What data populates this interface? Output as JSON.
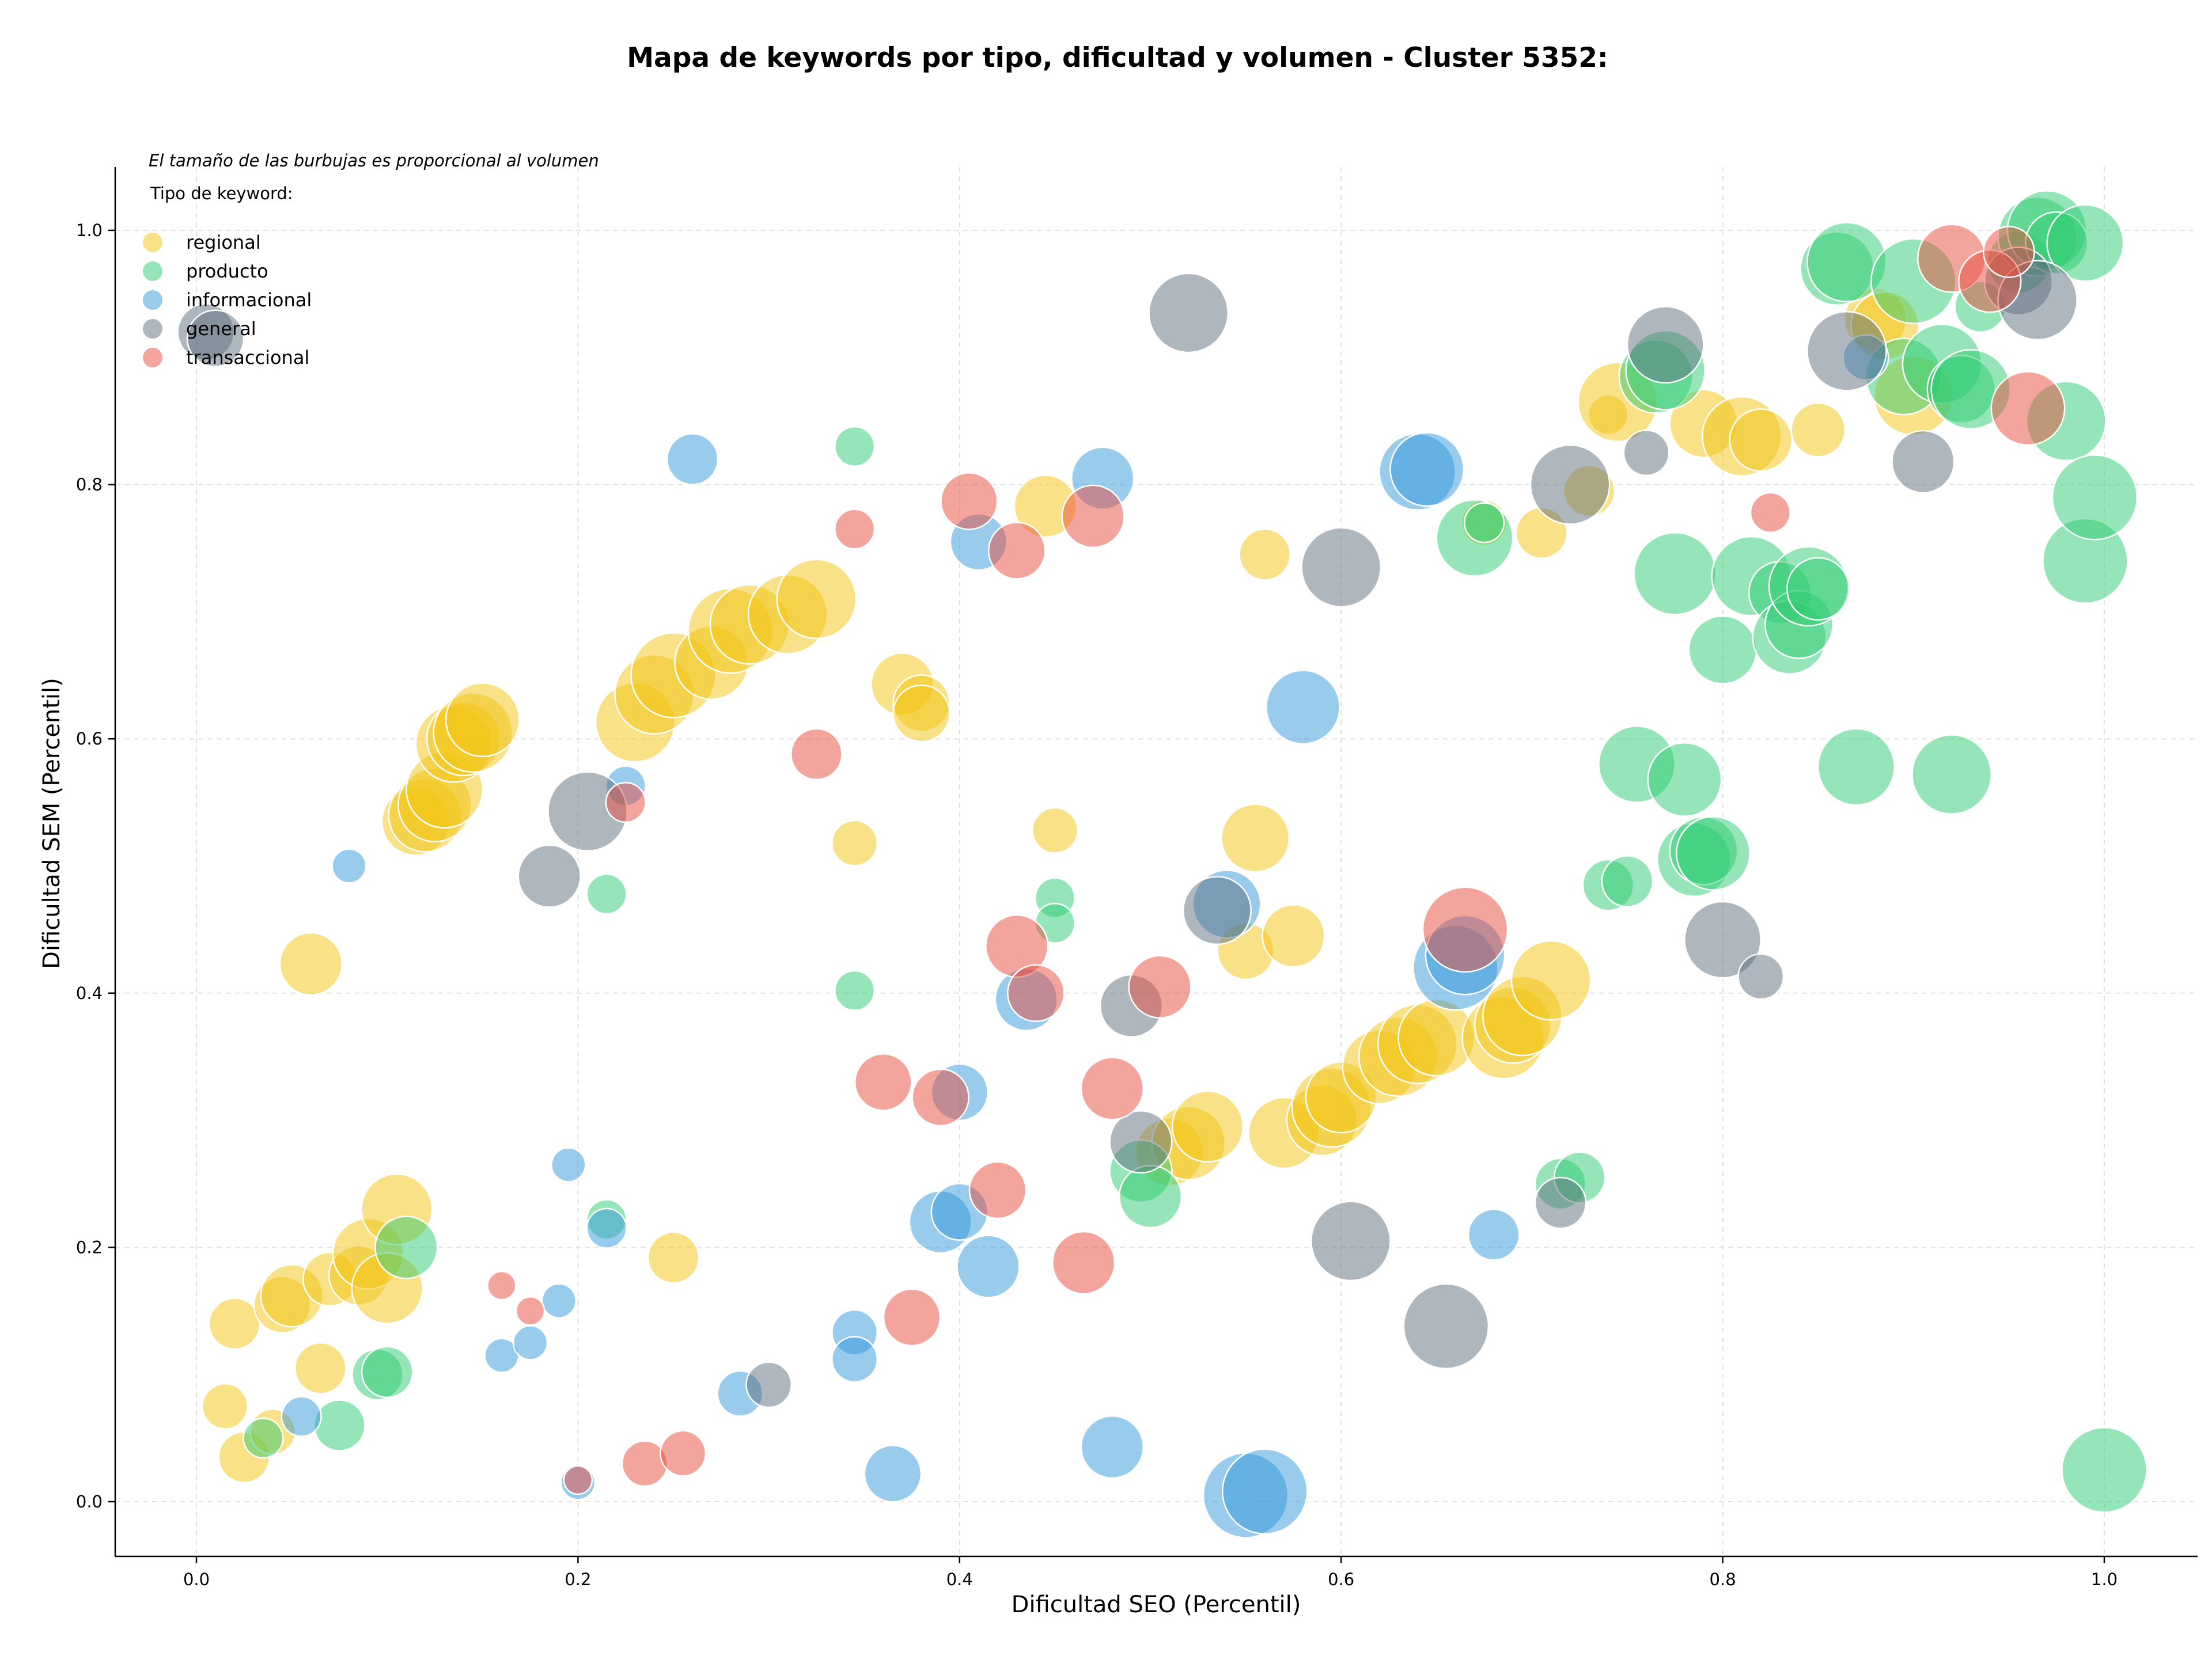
{
  "chart_data": {
    "type": "scatter",
    "title": "Mapa de keywords por tipo, dificultad y volumen - Cluster 5352:",
    "xlabel": "Dificultad SEO (Percentil)",
    "ylabel": "Dificultad SEM (Percentil)",
    "note": "El tamaño de las burbujas es proporcional al volumen",
    "legend_title": "Tipo de keyword:",
    "legend_placement": "top-left",
    "grid": true,
    "xlim": [
      -0.05,
      1.05
    ],
    "ylim": [
      -0.04,
      1.05
    ],
    "x_ticks": [
      "0.0",
      "0.2",
      "0.4",
      "0.6",
      "0.8",
      "1.0"
    ],
    "y_ticks": [
      "0.0",
      "0.2",
      "0.4",
      "0.6",
      "0.8",
      "1.0"
    ],
    "series": [
      {
        "name": "regional",
        "color": "#f1c40f",
        "points": [
          [
            0.015,
            0.075,
            16
          ],
          [
            0.02,
            0.14,
            18
          ],
          [
            0.025,
            0.035,
            18
          ],
          [
            0.04,
            0.055,
            16
          ],
          [
            0.045,
            0.155,
            20
          ],
          [
            0.05,
            0.162,
            22
          ],
          [
            0.065,
            0.105,
            18
          ],
          [
            0.07,
            0.175,
            19
          ],
          [
            0.085,
            0.178,
            21
          ],
          [
            0.09,
            0.195,
            25
          ],
          [
            0.1,
            0.168,
            25
          ],
          [
            0.105,
            0.23,
            25
          ],
          [
            0.06,
            0.423,
            22
          ],
          [
            0.115,
            0.535,
            24
          ],
          [
            0.12,
            0.54,
            26
          ],
          [
            0.125,
            0.548,
            26
          ],
          [
            0.13,
            0.56,
            27
          ],
          [
            0.135,
            0.596,
            27
          ],
          [
            0.14,
            0.6,
            26
          ],
          [
            0.145,
            0.605,
            28
          ],
          [
            0.15,
            0.615,
            26
          ],
          [
            0.23,
            0.613,
            28
          ],
          [
            0.24,
            0.635,
            28
          ],
          [
            0.25,
            0.65,
            30
          ],
          [
            0.27,
            0.66,
            26
          ],
          [
            0.28,
            0.685,
            30
          ],
          [
            0.29,
            0.69,
            28
          ],
          [
            0.31,
            0.698,
            28
          ],
          [
            0.325,
            0.71,
            28
          ],
          [
            0.37,
            0.643,
            22
          ],
          [
            0.38,
            0.628,
            20
          ],
          [
            0.38,
            0.62,
            20
          ],
          [
            0.445,
            0.783,
            22
          ],
          [
            0.45,
            0.528,
            16
          ],
          [
            0.345,
            0.518,
            16
          ],
          [
            0.25,
            0.192,
            18
          ],
          [
            0.51,
            0.275,
            24
          ],
          [
            0.52,
            0.282,
            26
          ],
          [
            0.53,
            0.295,
            25
          ],
          [
            0.55,
            0.433,
            20
          ],
          [
            0.555,
            0.522,
            24
          ],
          [
            0.56,
            0.745,
            18
          ],
          [
            0.575,
            0.445,
            22
          ],
          [
            0.57,
            0.29,
            25
          ],
          [
            0.59,
            0.3,
            25
          ],
          [
            0.595,
            0.31,
            28
          ],
          [
            0.6,
            0.318,
            25
          ],
          [
            0.62,
            0.342,
            26
          ],
          [
            0.63,
            0.35,
            28
          ],
          [
            0.64,
            0.36,
            28
          ],
          [
            0.65,
            0.365,
            27
          ],
          [
            0.685,
            0.365,
            29
          ],
          [
            0.69,
            0.375,
            27
          ],
          [
            0.695,
            0.382,
            28
          ],
          [
            0.71,
            0.41,
            28
          ],
          [
            0.705,
            0.762,
            18
          ],
          [
            0.73,
            0.795,
            18
          ],
          [
            0.74,
            0.855,
            14
          ],
          [
            0.745,
            0.865,
            28
          ],
          [
            0.79,
            0.848,
            24
          ],
          [
            0.81,
            0.838,
            28
          ],
          [
            0.82,
            0.835,
            22
          ],
          [
            0.85,
            0.843,
            19
          ],
          [
            0.88,
            0.93,
            22
          ],
          [
            0.885,
            0.925,
            24
          ],
          [
            0.9,
            0.87,
            28
          ],
          [
            0.675,
            0.77,
            16
          ]
        ]
      },
      {
        "name": "producto",
        "color": "#2ecc71",
        "points": [
          [
            0.035,
            0.05,
            14
          ],
          [
            0.075,
            0.06,
            18
          ],
          [
            0.095,
            0.1,
            18
          ],
          [
            0.1,
            0.102,
            18
          ],
          [
            0.11,
            0.2,
            22
          ],
          [
            0.215,
            0.222,
            14
          ],
          [
            0.215,
            0.478,
            14
          ],
          [
            0.345,
            0.83,
            14
          ],
          [
            0.345,
            0.402,
            14
          ],
          [
            0.45,
            0.475,
            14
          ],
          [
            0.45,
            0.455,
            14
          ],
          [
            0.495,
            0.26,
            22
          ],
          [
            0.5,
            0.24,
            22
          ],
          [
            0.67,
            0.758,
            27
          ],
          [
            0.675,
            0.77,
            14
          ],
          [
            0.715,
            0.25,
            18
          ],
          [
            0.725,
            0.255,
            18
          ],
          [
            0.74,
            0.485,
            18
          ],
          [
            0.75,
            0.488,
            18
          ],
          [
            0.755,
            0.58,
            27
          ],
          [
            0.765,
            0.885,
            26
          ],
          [
            0.77,
            0.89,
            28
          ],
          [
            0.775,
            0.73,
            29
          ],
          [
            0.78,
            0.568,
            26
          ],
          [
            0.785,
            0.505,
            26
          ],
          [
            0.79,
            0.512,
            24
          ],
          [
            0.795,
            0.51,
            26
          ],
          [
            0.8,
            0.67,
            24
          ],
          [
            0.815,
            0.728,
            28
          ],
          [
            0.83,
            0.715,
            22
          ],
          [
            0.835,
            0.68,
            26
          ],
          [
            0.84,
            0.69,
            24
          ],
          [
            0.845,
            0.72,
            28
          ],
          [
            0.85,
            0.718,
            22
          ],
          [
            0.86,
            0.97,
            26
          ],
          [
            0.865,
            0.975,
            28
          ],
          [
            0.87,
            0.578,
            27
          ],
          [
            0.895,
            0.885,
            27
          ],
          [
            0.9,
            0.96,
            30
          ],
          [
            0.915,
            0.895,
            28
          ],
          [
            0.92,
            0.572,
            28
          ],
          [
            0.925,
            0.875,
            24
          ],
          [
            0.93,
            0.875,
            28
          ],
          [
            0.935,
            0.94,
            18
          ],
          [
            0.955,
            0.975,
            22
          ],
          [
            0.965,
            0.995,
            28
          ],
          [
            0.97,
            1.0,
            28
          ],
          [
            0.975,
            0.99,
            22
          ],
          [
            0.98,
            0.85,
            28
          ],
          [
            0.99,
            0.99,
            27
          ],
          [
            0.99,
            0.74,
            30
          ],
          [
            0.995,
            0.79,
            30
          ],
          [
            1.0,
            0.025,
            30
          ]
        ]
      },
      {
        "name": "informacional",
        "color": "#3498db",
        "points": [
          [
            0.055,
            0.067,
            14
          ],
          [
            0.08,
            0.5,
            12
          ],
          [
            0.16,
            0.115,
            12
          ],
          [
            0.175,
            0.125,
            12
          ],
          [
            0.19,
            0.158,
            12
          ],
          [
            0.195,
            0.265,
            12
          ],
          [
            0.2,
            0.015,
            12
          ],
          [
            0.215,
            0.215,
            14
          ],
          [
            0.225,
            0.563,
            14
          ],
          [
            0.26,
            0.82,
            18
          ],
          [
            0.285,
            0.085,
            16
          ],
          [
            0.345,
            0.133,
            16
          ],
          [
            0.345,
            0.112,
            16
          ],
          [
            0.365,
            0.022,
            20
          ],
          [
            0.39,
            0.22,
            22
          ],
          [
            0.4,
            0.228,
            20
          ],
          [
            0.4,
            0.322,
            20
          ],
          [
            0.41,
            0.755,
            20
          ],
          [
            0.415,
            0.185,
            22
          ],
          [
            0.435,
            0.395,
            22
          ],
          [
            0.475,
            0.805,
            22
          ],
          [
            0.48,
            0.043,
            22
          ],
          [
            0.54,
            0.47,
            24
          ],
          [
            0.55,
            0.005,
            30
          ],
          [
            0.56,
            0.008,
            30
          ],
          [
            0.58,
            0.625,
            26
          ],
          [
            0.64,
            0.81,
            27
          ],
          [
            0.645,
            0.812,
            26
          ],
          [
            0.66,
            0.42,
            30
          ],
          [
            0.665,
            0.43,
            28
          ],
          [
            0.68,
            0.21,
            18
          ],
          [
            0.875,
            0.9,
            16
          ]
        ]
      },
      {
        "name": "general",
        "color": "#5d6d7e",
        "points": [
          [
            0.005,
            0.92,
            20
          ],
          [
            0.01,
            0.915,
            20
          ],
          [
            0.185,
            0.492,
            22
          ],
          [
            0.205,
            0.543,
            28
          ],
          [
            0.3,
            0.092,
            16
          ],
          [
            0.49,
            0.39,
            22
          ],
          [
            0.495,
            0.283,
            22
          ],
          [
            0.52,
            0.935,
            28
          ],
          [
            0.535,
            0.465,
            24
          ],
          [
            0.605,
            0.205,
            28
          ],
          [
            0.6,
            0.735,
            28
          ],
          [
            0.655,
            0.138,
            30
          ],
          [
            0.715,
            0.235,
            18
          ],
          [
            0.72,
            0.8,
            28
          ],
          [
            0.76,
            0.825,
            16
          ],
          [
            0.77,
            0.91,
            27
          ],
          [
            0.8,
            0.442,
            27
          ],
          [
            0.82,
            0.413,
            16
          ],
          [
            0.865,
            0.905,
            28
          ],
          [
            0.905,
            0.818,
            22
          ],
          [
            0.955,
            0.96,
            24
          ],
          [
            0.965,
            0.945,
            28
          ]
        ]
      },
      {
        "name": "transaccional",
        "color": "#e74c3c",
        "points": [
          [
            0.16,
            0.17,
            10
          ],
          [
            0.175,
            0.15,
            10
          ],
          [
            0.2,
            0.017,
            10
          ],
          [
            0.225,
            0.55,
            14
          ],
          [
            0.235,
            0.03,
            16
          ],
          [
            0.255,
            0.038,
            16
          ],
          [
            0.325,
            0.588,
            18
          ],
          [
            0.345,
            0.765,
            14
          ],
          [
            0.36,
            0.33,
            20
          ],
          [
            0.375,
            0.145,
            20
          ],
          [
            0.39,
            0.318,
            20
          ],
          [
            0.405,
            0.787,
            20
          ],
          [
            0.42,
            0.245,
            20
          ],
          [
            0.43,
            0.748,
            20
          ],
          [
            0.43,
            0.437,
            22
          ],
          [
            0.44,
            0.4,
            20
          ],
          [
            0.465,
            0.188,
            22
          ],
          [
            0.47,
            0.775,
            22
          ],
          [
            0.48,
            0.325,
            22
          ],
          [
            0.505,
            0.405,
            22
          ],
          [
            0.665,
            0.45,
            30
          ],
          [
            0.825,
            0.778,
            14
          ],
          [
            0.92,
            0.978,
            24
          ],
          [
            0.94,
            0.96,
            22
          ],
          [
            0.95,
            0.983,
            18
          ],
          [
            0.96,
            0.86,
            26
          ]
        ]
      }
    ]
  }
}
